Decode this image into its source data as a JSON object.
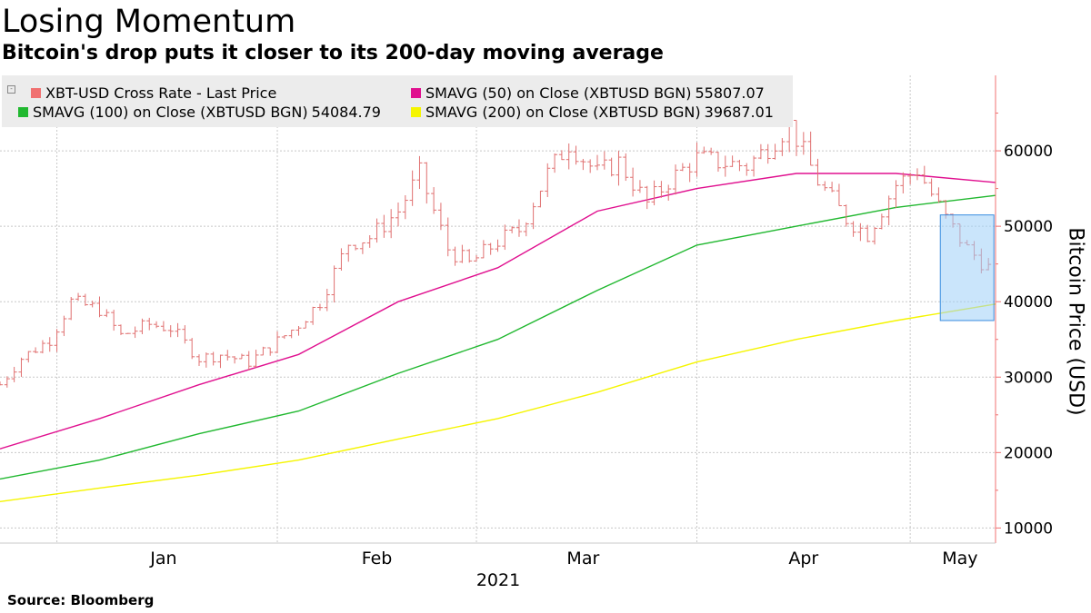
{
  "header": {
    "title": "Losing Momentum",
    "subtitle": "Bitcoin's drop puts it closer to its 200-day moving average"
  },
  "footer": {
    "source": "Source: Bloomberg"
  },
  "legend": {
    "items": [
      {
        "name": "XBT-USD Cross Rate - Last Price",
        "value": "",
        "color": "#f07070"
      },
      {
        "name": "SMAVG (50)  on Close (XBTUSD BGN)",
        "value": "55807.07",
        "color": "#e0108f"
      },
      {
        "name": "SMAVG (100)  on Close (XBTUSD BGN)",
        "value": "54084.79",
        "color": "#21b830"
      },
      {
        "name": "SMAVG (200)  on Close (XBTUSD BGN)",
        "value": "39687.01",
        "color": "#f5f500"
      }
    ]
  },
  "chart_data": {
    "type": "line",
    "ylabel": "Bitcoin Price (USD)",
    "xlabel": "2021",
    "x_tick_labels": [
      "Jan",
      "Feb",
      "Mar",
      "Apr",
      "May"
    ],
    "y_ticks": [
      10000,
      20000,
      30000,
      40000,
      50000,
      60000
    ],
    "ylim": [
      8000,
      70000
    ],
    "x_start": "2020-12-24",
    "x_end": "2021-05-13",
    "grid": true,
    "highlight_box": {
      "x_start": "2021-05-06",
      "x_end": "2021-05-12",
      "y_min": 37500,
      "y_max": 51500,
      "color": "#9fd0f7"
    },
    "series": [
      {
        "name": "XBT-USD Cross Rate - Last Price",
        "color": "#e07070",
        "x": [
          "2020-12-24",
          "2020-12-27",
          "2020-12-31",
          "2021-01-03",
          "2021-01-07",
          "2021-01-10",
          "2021-01-14",
          "2021-01-17",
          "2021-01-21",
          "2021-01-24",
          "2021-01-28",
          "2021-01-31",
          "2021-02-04",
          "2021-02-07",
          "2021-02-11",
          "2021-02-14",
          "2021-02-18",
          "2021-02-21",
          "2021-02-25",
          "2021-02-28",
          "2021-03-04",
          "2021-03-07",
          "2021-03-11",
          "2021-03-14",
          "2021-03-18",
          "2021-03-21",
          "2021-03-25",
          "2021-03-28",
          "2021-04-01",
          "2021-04-04",
          "2021-04-08",
          "2021-04-11",
          "2021-04-14",
          "2021-04-18",
          "2021-04-22",
          "2021-04-25",
          "2021-04-29",
          "2021-05-02",
          "2021-05-06",
          "2021-05-09",
          "2021-05-12"
        ],
        "values": [
          29000,
          32500,
          35000,
          40000,
          39000,
          35500,
          37000,
          36500,
          32500,
          33000,
          32000,
          34000,
          37000,
          40000,
          47800,
          48500,
          52000,
          57000,
          47000,
          45000,
          48000,
          49500,
          57000,
          61000,
          57000,
          58500,
          53000,
          56000,
          59000,
          58500,
          58000,
          60500,
          63500,
          56000,
          51000,
          49000,
          55500,
          57500,
          51000,
          47000,
          44500
        ]
      },
      {
        "name": "SMAVG (50)  on Close (XBTUSD BGN)",
        "color": "#e0108f",
        "x": [
          "2020-12-24",
          "2021-01-07",
          "2021-01-21",
          "2021-02-04",
          "2021-02-18",
          "2021-03-04",
          "2021-03-18",
          "2021-04-01",
          "2021-04-15",
          "2021-04-29",
          "2021-05-13"
        ],
        "values": [
          20500,
          24500,
          29000,
          33000,
          40000,
          44500,
          52000,
          55000,
          57000,
          57000,
          55807
        ]
      },
      {
        "name": "SMAVG (100)  on Close (XBTUSD BGN)",
        "color": "#21b830",
        "x": [
          "2020-12-24",
          "2021-01-07",
          "2021-01-21",
          "2021-02-04",
          "2021-02-18",
          "2021-03-04",
          "2021-03-18",
          "2021-04-01",
          "2021-04-15",
          "2021-04-29",
          "2021-05-13"
        ],
        "values": [
          16500,
          19000,
          22500,
          25500,
          30500,
          35000,
          41500,
          47500,
          50000,
          52500,
          54085
        ]
      },
      {
        "name": "SMAVG (200)  on Close (XBTUSD BGN)",
        "color": "#f5f500",
        "x": [
          "2020-12-24",
          "2021-01-07",
          "2021-01-21",
          "2021-02-04",
          "2021-02-18",
          "2021-03-04",
          "2021-03-18",
          "2021-04-01",
          "2021-04-15",
          "2021-04-29",
          "2021-05-13"
        ],
        "values": [
          13500,
          15300,
          17000,
          19000,
          21800,
          24500,
          28000,
          32000,
          35000,
          37500,
          39687
        ]
      }
    ]
  }
}
